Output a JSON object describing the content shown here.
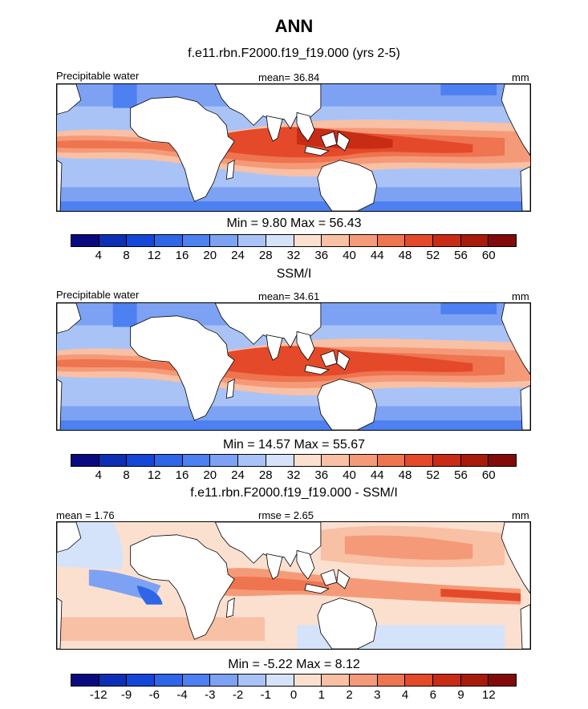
{
  "title": "ANN",
  "panels": [
    {
      "subtitle": "f.e11.rbn.F2000.f19_f19.000 (yrs 2-5)",
      "left_label": "Precipitable water",
      "center_label": "mean=  36.84",
      "right_label": "mm",
      "minmax": "Min =   9.80 Max =  56.43",
      "kind": "abs"
    },
    {
      "subtitle": "SSM/I",
      "left_label": "Precipitable water",
      "center_label": "mean=  34.61",
      "right_label": "mm",
      "minmax": "Min =  14.57 Max =  55.67",
      "kind": "abs"
    },
    {
      "subtitle": "f.e11.rbn.F2000.f19_f19.000 - SSM/I",
      "left_label": "mean =   1.76",
      "center_label": "rmse =   2.65",
      "right_label": "mm",
      "minmax": "Min =  -5.22 Max =   8.12",
      "kind": "diff"
    }
  ],
  "colorbar_abs": {
    "ticks": [
      "4",
      "8",
      "12",
      "16",
      "20",
      "24",
      "28",
      "32",
      "36",
      "40",
      "44",
      "48",
      "52",
      "56",
      "60"
    ],
    "colors": [
      "#0a0a80",
      "#0c2fb5",
      "#1446d8",
      "#2f66e8",
      "#4d80f0",
      "#7ea2f3",
      "#a9c3f7",
      "#d4e3fa",
      "#fbe0d0",
      "#f8c0a4",
      "#f59a78",
      "#ef7450",
      "#e44a2a",
      "#c82c14",
      "#a81a0a",
      "#820a0a"
    ]
  },
  "colorbar_diff": {
    "ticks": [
      "-12",
      "-9",
      "-6",
      "-4",
      "-3",
      "-2",
      "-1",
      "0",
      "1",
      "2",
      "3",
      "4",
      "6",
      "9",
      "12"
    ],
    "colors": [
      "#0a0a80",
      "#0c2fb5",
      "#1446d8",
      "#2f66e8",
      "#4d80f0",
      "#7ea2f3",
      "#a9c3f7",
      "#d4e3fa",
      "#fbe0d0",
      "#f8c0a4",
      "#f59a78",
      "#ef7450",
      "#e44a2a",
      "#c82c14",
      "#a81a0a",
      "#820a0a"
    ]
  }
}
